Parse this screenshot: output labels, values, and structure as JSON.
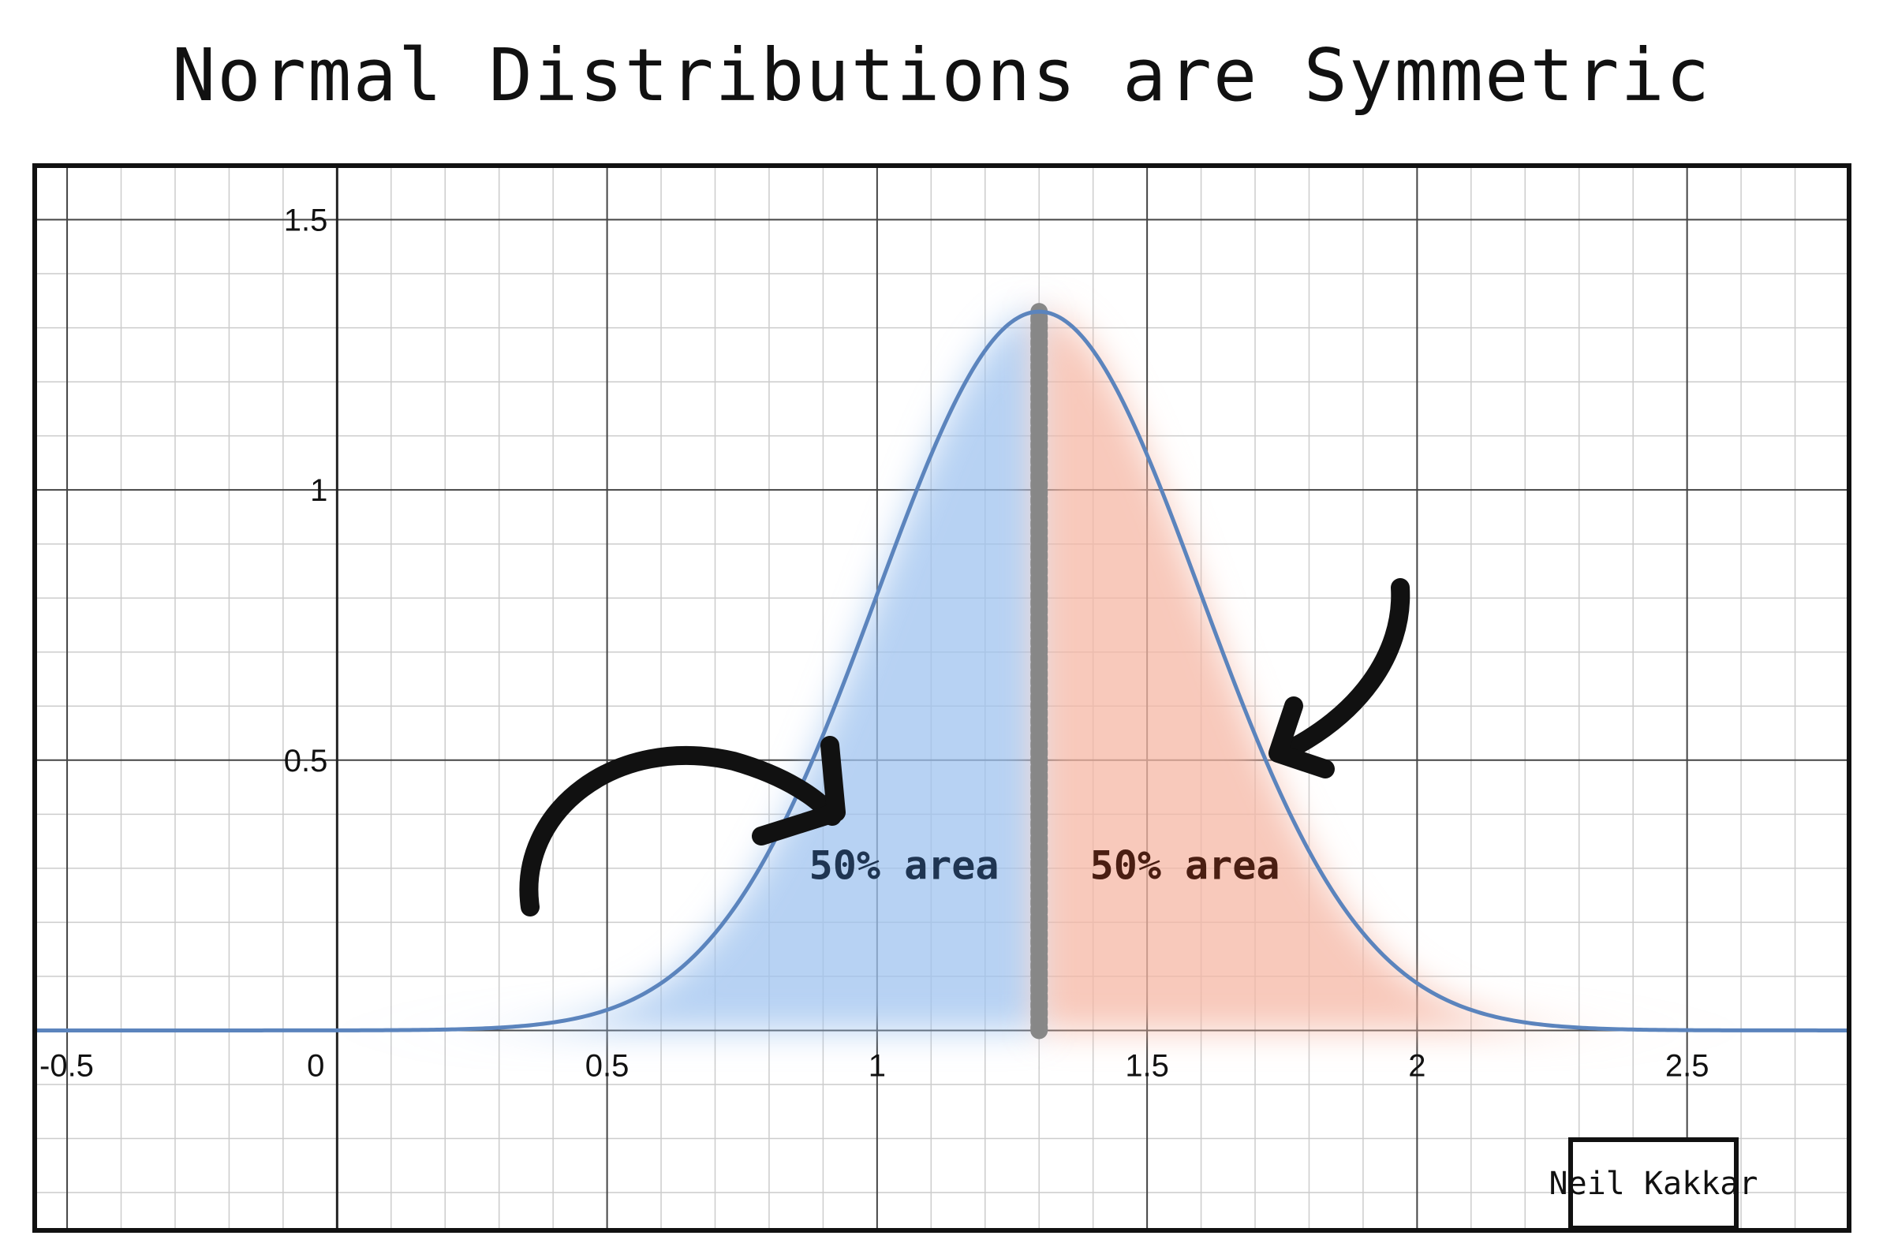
{
  "title": "Normal Distributions are Symmetric",
  "watermark": "Neil Kakkar",
  "colors": {
    "curve": "#5b84bd",
    "left_fill": "#9fc3ef",
    "right_fill": "#f6b7a4",
    "mean_line": "#888888",
    "left_label": "#1f3552",
    "right_label": "#4a1e12",
    "grid_major": "#444444",
    "grid_minor": "#cccccc"
  },
  "chart_data": {
    "type": "area",
    "title": "Normal Distributions are Symmetric",
    "xlabel": "",
    "ylabel": "",
    "xlim": [
      -0.56,
      2.8
    ],
    "ylim": [
      -0.37,
      1.6
    ],
    "grid": true,
    "minor_grid_step": 0.1,
    "x_ticks": [
      "-0.5",
      "0",
      "0.5",
      "1",
      "1.5",
      "2",
      "2.5"
    ],
    "x_tick_values": [
      -0.5,
      0,
      0.5,
      1,
      1.5,
      2,
      2.5
    ],
    "y_ticks": [
      "0.5",
      "1",
      "1.5"
    ],
    "y_tick_values": [
      0.5,
      1,
      1.5
    ],
    "distribution": {
      "name": "normal",
      "mean": 1.3,
      "sd": 0.3
    },
    "series": [
      {
        "x": [
          -0.56,
          0.2,
          0.4,
          0.5,
          0.6,
          0.7,
          0.8,
          0.9,
          1.0,
          1.1,
          1.2,
          1.3,
          1.4,
          1.5,
          1.6,
          1.7,
          1.8,
          1.9,
          2.0,
          2.1,
          2.2,
          2.4,
          2.8
        ],
        "y": [
          0.0,
          0.002,
          0.014,
          0.038,
          0.088,
          0.18,
          0.33,
          0.55,
          0.81,
          1.07,
          1.26,
          1.33,
          1.26,
          1.07,
          0.81,
          0.55,
          0.33,
          0.18,
          0.088,
          0.038,
          0.014,
          0.002,
          0.0
        ]
      }
    ],
    "mean_line_x": 1.3,
    "annotations": [
      {
        "text": "50% area",
        "x": 1.05,
        "y": 0.28,
        "side": "left"
      },
      {
        "text": "50% area",
        "x": 1.57,
        "y": 0.28,
        "side": "right"
      }
    ]
  }
}
